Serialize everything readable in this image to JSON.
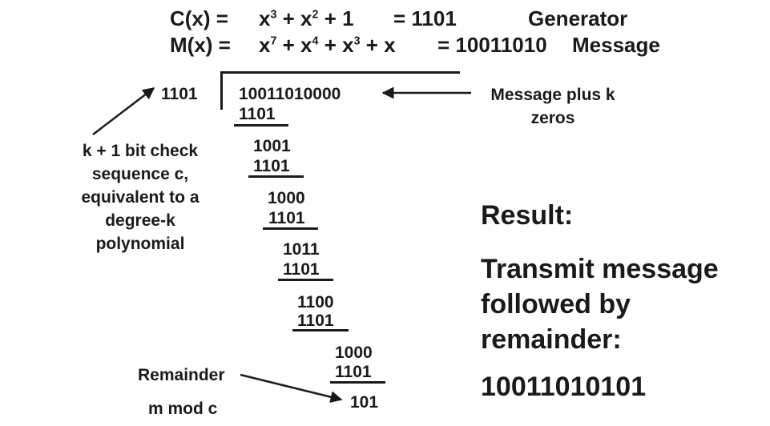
{
  "header": {
    "c_label": "C(x) =",
    "c_poly": [
      "x",
      "3",
      " + x",
      "2",
      " + 1"
    ],
    "c_value": "= 1101",
    "c_name": "Generator",
    "m_label": "M(x) =",
    "m_poly": [
      "x",
      "7",
      " + x",
      "4",
      " + x",
      "3",
      " + x"
    ],
    "m_value": "= 10011010",
    "m_name": "Message"
  },
  "division": {
    "divisor": "1101",
    "dividend": "10011010000",
    "steps": [
      "1101",
      "1001",
      "1101",
      "1000",
      "1101",
      "1011",
      "1101",
      "1100",
      "1101",
      "1000",
      "1101"
    ],
    "remainder": "101"
  },
  "annotations": {
    "message_plus_zeros": "Message plus k zeros",
    "check_sequence": "k + 1 bit check sequence c, equivalent to a degree-k polynomial",
    "remainder_label": "Remainder",
    "mod_label": "m mod c"
  },
  "result": {
    "title": "Result:",
    "text": "Transmit message followed by remainder:",
    "value": "10011010101"
  },
  "colors": {
    "text": "#1a1a1a",
    "background": "#ffffff"
  }
}
